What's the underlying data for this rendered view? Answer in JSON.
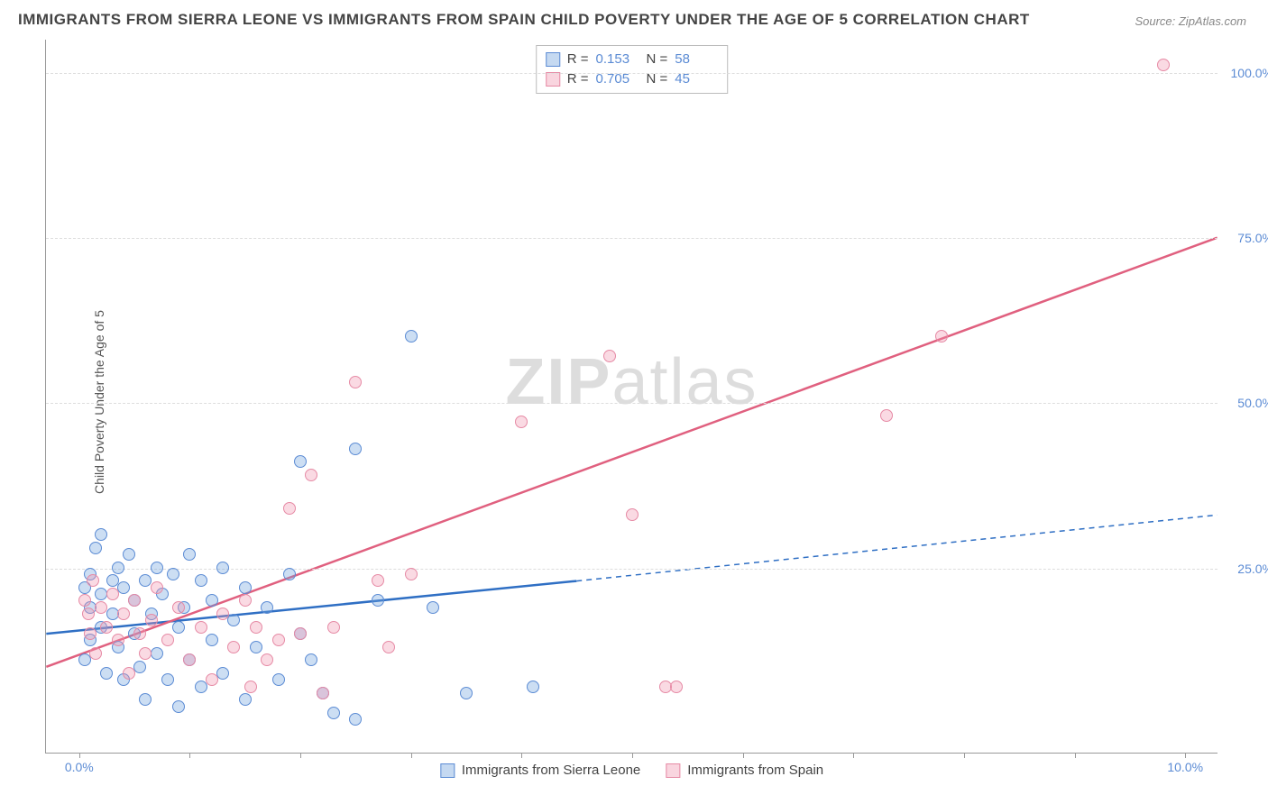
{
  "title": "IMMIGRANTS FROM SIERRA LEONE VS IMMIGRANTS FROM SPAIN CHILD POVERTY UNDER THE AGE OF 5 CORRELATION CHART",
  "source": "Source: ZipAtlas.com",
  "ylabel": "Child Poverty Under the Age of 5",
  "watermark_zip": "ZIP",
  "watermark_atlas": "atlas",
  "chart": {
    "type": "scatter",
    "xmin": -0.3,
    "xmax": 10.3,
    "ymin": -3,
    "ymax": 105,
    "xticks": [
      0,
      1,
      2,
      3,
      4,
      5,
      6,
      7,
      8,
      9,
      10
    ],
    "xtick_labels": {
      "0": "0.0%",
      "10": "10.0%"
    },
    "yticks": [
      0,
      25,
      50,
      75,
      100
    ],
    "ytick_labels": {
      "25": "25.0%",
      "50": "50.0%",
      "75": "75.0%",
      "100": "100.0%"
    },
    "grid_color": "#dddddd",
    "axis_color": "#999999",
    "background": "#ffffff",
    "series": [
      {
        "name": "Immigrants from Sierra Leone",
        "color_fill": "rgba(110,160,220,0.35)",
        "color_stroke": "#5b8bd4",
        "R": "0.153",
        "N": "58",
        "trend": {
          "x1": -0.3,
          "y1": 15,
          "x2": 4.5,
          "y2": 23,
          "x2_ext": 10.3,
          "y2_ext": 33,
          "dashed_from": 4.5,
          "stroke_width": 2.5
        },
        "points": [
          [
            0.05,
            22
          ],
          [
            0.05,
            11
          ],
          [
            0.1,
            24
          ],
          [
            0.1,
            19
          ],
          [
            0.1,
            14
          ],
          [
            0.15,
            28
          ],
          [
            0.2,
            30
          ],
          [
            0.2,
            21
          ],
          [
            0.2,
            16
          ],
          [
            0.25,
            9
          ],
          [
            0.3,
            23
          ],
          [
            0.3,
            18
          ],
          [
            0.35,
            25
          ],
          [
            0.35,
            13
          ],
          [
            0.4,
            22
          ],
          [
            0.4,
            8
          ],
          [
            0.45,
            27
          ],
          [
            0.5,
            20
          ],
          [
            0.5,
            15
          ],
          [
            0.55,
            10
          ],
          [
            0.6,
            23
          ],
          [
            0.6,
            5
          ],
          [
            0.65,
            18
          ],
          [
            0.7,
            25
          ],
          [
            0.7,
            12
          ],
          [
            0.75,
            21
          ],
          [
            0.8,
            8
          ],
          [
            0.85,
            24
          ],
          [
            0.9,
            16
          ],
          [
            0.9,
            4
          ],
          [
            0.95,
            19
          ],
          [
            1.0,
            27
          ],
          [
            1.0,
            11
          ],
          [
            1.1,
            23
          ],
          [
            1.1,
            7
          ],
          [
            1.2,
            20
          ],
          [
            1.2,
            14
          ],
          [
            1.3,
            25
          ],
          [
            1.3,
            9
          ],
          [
            1.4,
            17
          ],
          [
            1.5,
            22
          ],
          [
            1.5,
            5
          ],
          [
            1.6,
            13
          ],
          [
            1.7,
            19
          ],
          [
            1.8,
            8
          ],
          [
            1.9,
            24
          ],
          [
            2.0,
            41
          ],
          [
            2.0,
            15
          ],
          [
            2.1,
            11
          ],
          [
            2.2,
            6
          ],
          [
            2.3,
            3
          ],
          [
            2.5,
            43
          ],
          [
            2.5,
            2
          ],
          [
            2.7,
            20
          ],
          [
            3.0,
            60
          ],
          [
            3.5,
            6
          ],
          [
            3.2,
            19
          ],
          [
            4.1,
            7
          ]
        ]
      },
      {
        "name": "Immigrants from Spain",
        "color_fill": "rgba(240,150,175,0.35)",
        "color_stroke": "#e68aa5",
        "R": "0.705",
        "N": "45",
        "trend": {
          "x1": -0.3,
          "y1": 10,
          "x2": 10.3,
          "y2": 75,
          "stroke_width": 2.5
        },
        "points": [
          [
            0.05,
            20
          ],
          [
            0.08,
            18
          ],
          [
            0.1,
            15
          ],
          [
            0.12,
            23
          ],
          [
            0.15,
            12
          ],
          [
            0.2,
            19
          ],
          [
            0.25,
            16
          ],
          [
            0.3,
            21
          ],
          [
            0.35,
            14
          ],
          [
            0.4,
            18
          ],
          [
            0.45,
            9
          ],
          [
            0.5,
            20
          ],
          [
            0.55,
            15
          ],
          [
            0.6,
            12
          ],
          [
            0.65,
            17
          ],
          [
            0.7,
            22
          ],
          [
            0.8,
            14
          ],
          [
            0.9,
            19
          ],
          [
            1.0,
            11
          ],
          [
            1.1,
            16
          ],
          [
            1.2,
            8
          ],
          [
            1.3,
            18
          ],
          [
            1.4,
            13
          ],
          [
            1.5,
            20
          ],
          [
            1.55,
            7
          ],
          [
            1.6,
            16
          ],
          [
            1.7,
            11
          ],
          [
            1.8,
            14
          ],
          [
            1.9,
            34
          ],
          [
            2.0,
            15
          ],
          [
            2.1,
            39
          ],
          [
            2.2,
            6
          ],
          [
            2.3,
            16
          ],
          [
            2.5,
            53
          ],
          [
            2.7,
            23
          ],
          [
            2.8,
            13
          ],
          [
            3.0,
            24
          ],
          [
            4.0,
            47
          ],
          [
            4.8,
            57
          ],
          [
            5.0,
            33
          ],
          [
            5.3,
            7
          ],
          [
            5.4,
            7
          ],
          [
            7.3,
            48
          ],
          [
            7.8,
            60
          ],
          [
            9.8,
            101
          ]
        ]
      }
    ],
    "stats_legend": {
      "r_label": "R  =",
      "n_label": "N  ="
    },
    "bottom_legend": [
      "Immigrants from Sierra Leone",
      "Immigrants from Spain"
    ]
  }
}
